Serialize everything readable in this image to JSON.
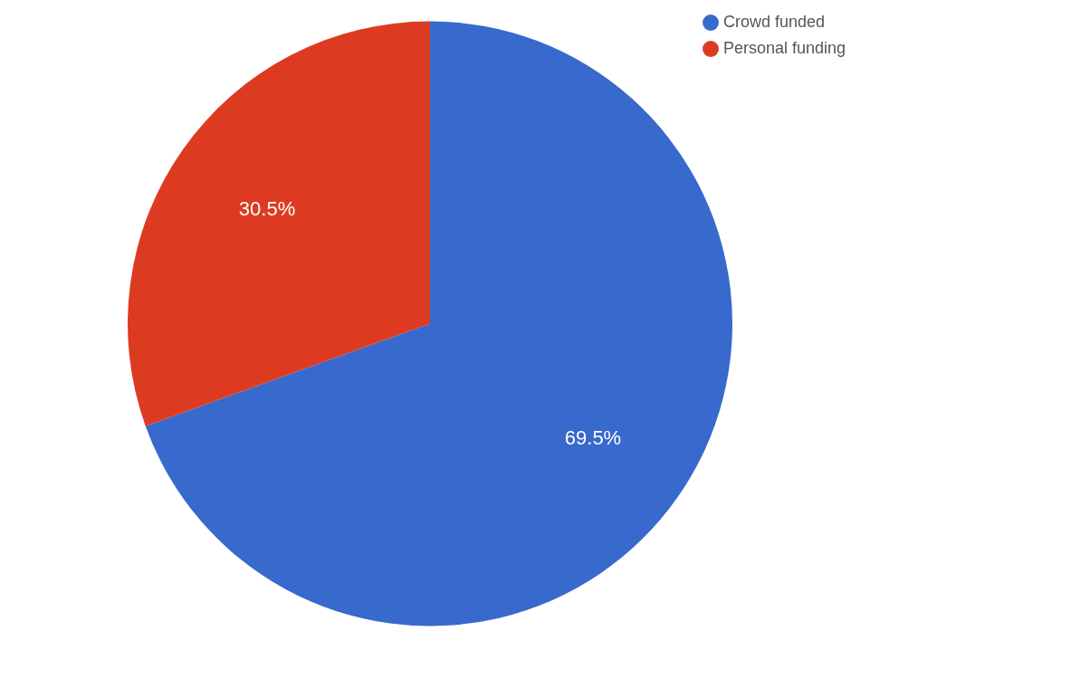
{
  "chart_data": {
    "type": "pie",
    "categories": [
      "Crowd funded",
      "Personal funding"
    ],
    "values": [
      69.5,
      30.5
    ],
    "colors": [
      "#3869cc",
      "#dc3b22"
    ],
    "value_labels": [
      "69.5%",
      "30.5%"
    ],
    "legend": "top right"
  }
}
